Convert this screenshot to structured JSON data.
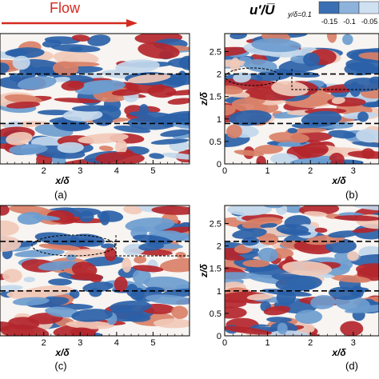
{
  "header": {
    "flow_label": "Flow",
    "colorbar_title_main": "u′/U̅",
    "colorbar_title_sub": "y/δ=0.1",
    "colorbar_ticks": [
      "-0.15",
      "-0.1",
      "-0.05"
    ]
  },
  "colors": {
    "flow_arrow": "#d42a20",
    "neg_strong": "#2a61a8",
    "neg_mid": "#6d9ccf",
    "neg_light": "#c2d7ec",
    "neutral": "#f7f4f1",
    "pos_light": "#f1c9b8",
    "pos_mid": "#d98068",
    "pos_strong": "#b3262d"
  },
  "chart_data": [
    {
      "type": "heatmap",
      "panel": "(a)",
      "xlabel": "x/δ",
      "ylabel": "",
      "xlim": [
        0.8,
        6.0
      ],
      "ylim": [
        0,
        2.9
      ],
      "x_ticks": [
        "2",
        "3",
        "4",
        "5"
      ],
      "y_ticks": [],
      "dashed_lines_z": [
        0.9,
        2.0
      ],
      "grid": false
    },
    {
      "type": "heatmap",
      "panel": "(b)",
      "xlabel": "x/δ",
      "ylabel": "z/δ",
      "xlim": [
        0,
        3.6
      ],
      "ylim": [
        0,
        2.9
      ],
      "x_ticks": [
        "0",
        "1",
        "2",
        "3"
      ],
      "y_ticks": [
        "0",
        "0.5",
        "1",
        "1.5",
        "2",
        "2.5"
      ],
      "dashed_lines_z": [
        0.9,
        2.0
      ],
      "grid": false
    },
    {
      "type": "heatmap",
      "panel": "(c)",
      "xlabel": "x/δ",
      "ylabel": "",
      "xlim": [
        0.8,
        6.0
      ],
      "ylim": [
        0,
        2.9
      ],
      "x_ticks": [
        "2",
        "3",
        "4",
        "5"
      ],
      "y_ticks": [],
      "dashed_lines_z": [
        1.0,
        2.1
      ],
      "grid": false
    },
    {
      "type": "heatmap",
      "panel": "(d)",
      "xlabel": "x/δ",
      "ylabel": "z/δ",
      "xlim": [
        0,
        3.6
      ],
      "ylim": [
        0,
        2.9
      ],
      "x_ticks": [
        "0",
        "1",
        "2",
        "3"
      ],
      "y_ticks": [
        "0",
        "0.5",
        "1",
        "1.5",
        "2",
        "2.5"
      ],
      "dashed_lines_z": [
        1.0,
        2.1
      ],
      "grid": false
    }
  ]
}
